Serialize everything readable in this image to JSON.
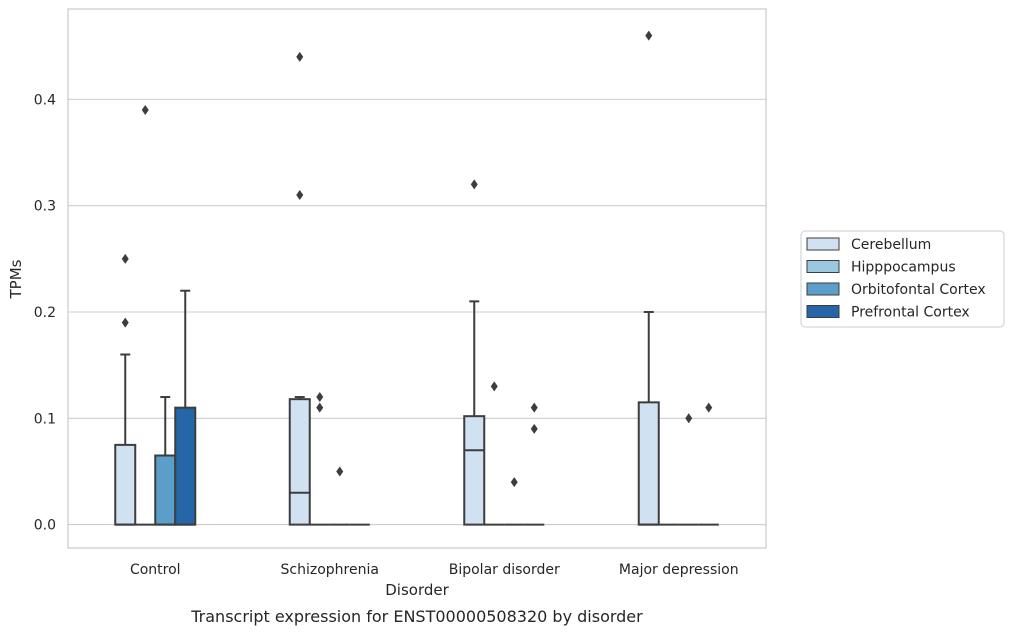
{
  "chart_data": {
    "type": "box",
    "caption": "Transcript expression for ENST00000508320 by disorder",
    "xlabel": "Disorder",
    "ylabel": "TPMs",
    "ylim": [
      -0.022,
      0.485
    ],
    "yticks": [
      0.0,
      0.1,
      0.2,
      0.3,
      0.4
    ],
    "ytick_labels": [
      "0.0",
      "0.1",
      "0.2",
      "0.3",
      "0.4"
    ],
    "grid": true,
    "legend_position": "right",
    "categories": [
      "Control",
      "Schizophrenia",
      "Bipolar disorder",
      "Major depression"
    ],
    "series": [
      {
        "name": "Cerebellum",
        "color": "#d0e1f2",
        "boxes": [
          {
            "q1": 0.0,
            "median": 0.0,
            "q3": 0.075,
            "whisker_low": 0.0,
            "whisker_high": 0.16,
            "outliers": [
              0.19,
              0.25
            ]
          },
          {
            "q1": 0.0,
            "median": 0.03,
            "q3": 0.118,
            "whisker_low": 0.0,
            "whisker_high": 0.12,
            "outliers": [
              0.31,
              0.44
            ]
          },
          {
            "q1": 0.0,
            "median": 0.07,
            "q3": 0.102,
            "whisker_low": 0.0,
            "whisker_high": 0.21,
            "outliers": [
              0.32
            ]
          },
          {
            "q1": 0.0,
            "median": 0.0,
            "q3": 0.115,
            "whisker_low": 0.0,
            "whisker_high": 0.2,
            "outliers": [
              0.46
            ]
          }
        ]
      },
      {
        "name": "Hipppocampus",
        "color": "#9ac8e0",
        "boxes": [
          {
            "q1": 0.0,
            "median": 0.0,
            "q3": 0.0,
            "whisker_low": 0.0,
            "whisker_high": 0.0,
            "outliers": [
              0.39
            ]
          },
          {
            "q1": 0.0,
            "median": 0.0,
            "q3": 0.0,
            "whisker_low": 0.0,
            "whisker_high": 0.0,
            "outliers": [
              0.11,
              0.12
            ]
          },
          {
            "q1": 0.0,
            "median": 0.0,
            "q3": 0.0,
            "whisker_low": 0.0,
            "whisker_high": 0.0,
            "outliers": [
              0.13
            ]
          },
          {
            "q1": 0.0,
            "median": 0.0,
            "q3": 0.0,
            "whisker_low": 0.0,
            "whisker_high": 0.0,
            "outliers": []
          }
        ]
      },
      {
        "name": "Orbitofontal Cortex",
        "color": "#5a9ec9",
        "boxes": [
          {
            "q1": 0.0,
            "median": 0.0,
            "q3": 0.065,
            "whisker_low": 0.0,
            "whisker_high": 0.12,
            "outliers": []
          },
          {
            "q1": 0.0,
            "median": 0.0,
            "q3": 0.0,
            "whisker_low": 0.0,
            "whisker_high": 0.0,
            "outliers": [
              0.05
            ]
          },
          {
            "q1": 0.0,
            "median": 0.0,
            "q3": 0.0,
            "whisker_low": 0.0,
            "whisker_high": 0.0,
            "outliers": [
              0.04
            ]
          },
          {
            "q1": 0.0,
            "median": 0.0,
            "q3": 0.0,
            "whisker_low": 0.0,
            "whisker_high": 0.0,
            "outliers": [
              0.1
            ]
          }
        ]
      },
      {
        "name": "Prefrontal Cortex",
        "color": "#2566a8",
        "boxes": [
          {
            "q1": 0.0,
            "median": 0.0,
            "q3": 0.11,
            "whisker_low": 0.0,
            "whisker_high": 0.22,
            "outliers": []
          },
          {
            "q1": 0.0,
            "median": 0.0,
            "q3": 0.0,
            "whisker_low": 0.0,
            "whisker_high": 0.0,
            "outliers": []
          },
          {
            "q1": 0.0,
            "median": 0.0,
            "q3": 0.0,
            "whisker_low": 0.0,
            "whisker_high": 0.0,
            "outliers": [
              0.09,
              0.11
            ]
          },
          {
            "q1": 0.0,
            "median": 0.0,
            "q3": 0.0,
            "whisker_low": 0.0,
            "whisker_high": 0.0,
            "outliers": [
              0.11
            ]
          }
        ]
      }
    ]
  }
}
